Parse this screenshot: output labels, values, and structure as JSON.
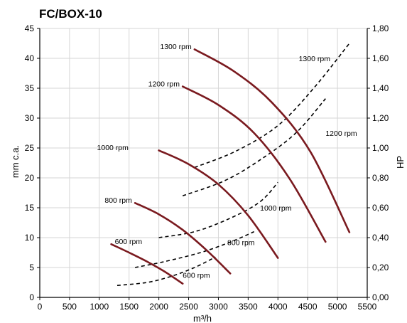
{
  "chart_data": {
    "type": "line",
    "title": "FC/BOX-10",
    "xlabel": "m³/h",
    "ylabel": "mm c.a.",
    "y2label": "HP",
    "xlim": [
      0,
      5500
    ],
    "ylim": [
      0,
      45
    ],
    "y2lim": [
      0,
      1.8
    ],
    "grid": true,
    "x_ticks": [
      "0",
      "500",
      "1000",
      "1500",
      "2000",
      "2500",
      "3000",
      "3500",
      "4000",
      "4500",
      "5000",
      "5500"
    ],
    "y_ticks": [
      "0",
      "5",
      "10",
      "15",
      "20",
      "25",
      "30",
      "35",
      "40",
      "45"
    ],
    "y2_ticks": [
      "0,00",
      "0,20",
      "0,40",
      "0,60",
      "0,80",
      "1,00",
      "1,20",
      "1,40",
      "1,60",
      "1,80"
    ],
    "pressure_curves": [
      {
        "label": "600 rpm",
        "color": "#7a1a1f",
        "points": [
          [
            1200,
            8.9
          ],
          [
            1500,
            7.5
          ],
          [
            1800,
            6.0
          ],
          [
            2100,
            4.3
          ],
          [
            2400,
            2.3
          ]
        ]
      },
      {
        "label": "800 rpm",
        "color": "#7a1a1f",
        "points": [
          [
            1600,
            15.8
          ],
          [
            2000,
            13.9
          ],
          [
            2400,
            11.3
          ],
          [
            2800,
            7.9
          ],
          [
            3200,
            4.0
          ]
        ]
      },
      {
        "label": "1000 rpm",
        "color": "#7a1a1f",
        "points": [
          [
            2000,
            24.6
          ],
          [
            2500,
            22.3
          ],
          [
            3000,
            18.9
          ],
          [
            3500,
            13.7
          ],
          [
            4000,
            6.6
          ]
        ]
      },
      {
        "label": "1200 rpm",
        "color": "#7a1a1f",
        "points": [
          [
            2400,
            35.3
          ],
          [
            3000,
            32.2
          ],
          [
            3600,
            27.5
          ],
          [
            4200,
            19.8
          ],
          [
            4800,
            9.3
          ]
        ]
      },
      {
        "label": "1300 rpm",
        "color": "#7a1a1f",
        "points": [
          [
            2600,
            41.5
          ],
          [
            3250,
            37.9
          ],
          [
            3900,
            32.6
          ],
          [
            4550,
            24.3
          ],
          [
            5200,
            10.9
          ]
        ]
      }
    ],
    "power_curves": [
      {
        "label": "600 rpm",
        "color": "#000000",
        "points": [
          [
            1300,
            0.08
          ],
          [
            1800,
            0.1
          ],
          [
            2200,
            0.14
          ],
          [
            2600,
            0.2
          ],
          [
            2950,
            0.27
          ]
        ]
      },
      {
        "label": "800 rpm",
        "color": "#000000",
        "points": [
          [
            1600,
            0.2
          ],
          [
            2100,
            0.24
          ],
          [
            2700,
            0.3
          ],
          [
            3200,
            0.37
          ],
          [
            3600,
            0.44
          ]
        ]
      },
      {
        "label": "1000 rpm",
        "color": "#000000",
        "points": [
          [
            2000,
            0.4
          ],
          [
            2600,
            0.44
          ],
          [
            3200,
            0.53
          ],
          [
            3700,
            0.64
          ],
          [
            4000,
            0.77
          ]
        ]
      },
      {
        "label": "1200 rpm",
        "color": "#000000",
        "points": [
          [
            2400,
            0.68
          ],
          [
            3100,
            0.78
          ],
          [
            3700,
            0.92
          ],
          [
            4300,
            1.1
          ],
          [
            4800,
            1.33
          ]
        ]
      },
      {
        "label": "1300 rpm",
        "color": "#000000",
        "points": [
          [
            2600,
            0.87
          ],
          [
            3300,
            0.98
          ],
          [
            4000,
            1.15
          ],
          [
            4600,
            1.4
          ],
          [
            5200,
            1.7
          ]
        ]
      }
    ],
    "pressure_labels": [
      {
        "text": "600 rpm",
        "x": 1720,
        "y": 9.4
      },
      {
        "text": "800 rpm",
        "x": 1550,
        "y": 16.3
      },
      {
        "text": "1000 rpm",
        "x": 1490,
        "y": 25.1
      },
      {
        "text": "1200 rpm",
        "x": 2350,
        "y": 35.8
      },
      {
        "text": "1300 rpm",
        "x": 2550,
        "y": 42.0
      }
    ],
    "power_labels": [
      {
        "text": "600 rpm",
        "x": 2400,
        "y": 0.15
      },
      {
        "text": "800 rpm",
        "x": 3150,
        "y": 0.37
      },
      {
        "text": "1000 rpm",
        "x": 3700,
        "y": 0.6
      },
      {
        "text": "1200 rpm",
        "x": 4800,
        "y": 1.1
      },
      {
        "text": "1300 rpm",
        "x": 4350,
        "y": 1.6
      }
    ]
  }
}
